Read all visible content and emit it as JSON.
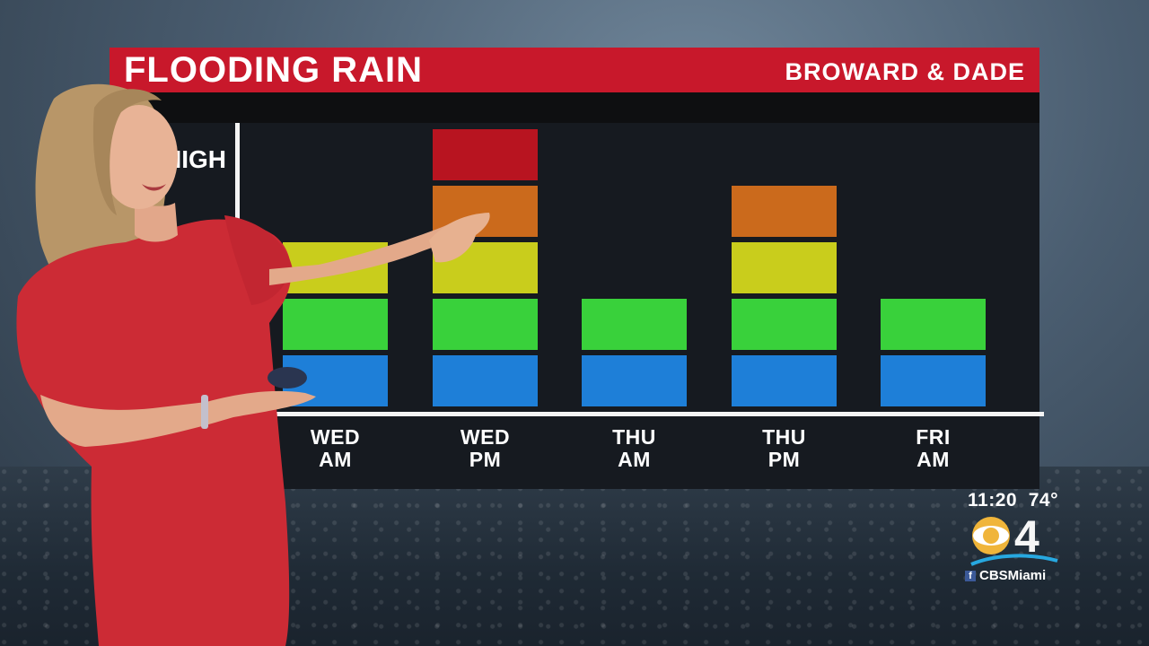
{
  "header": {
    "title": "FLOODING RAIN",
    "region": "BROWARD & DADE"
  },
  "y_label": "HIGH",
  "levels": [
    {
      "level": 1,
      "color": "#1e7fd8"
    },
    {
      "level": 2,
      "color": "#39d13b"
    },
    {
      "level": 3,
      "color": "#c9cd1c"
    },
    {
      "level": 4,
      "color": "#cb6a1c"
    },
    {
      "level": 5,
      "color": "#b81420"
    }
  ],
  "chart_data": {
    "type": "bar",
    "categories": [
      "WED AM",
      "WED PM",
      "THU AM",
      "THU PM",
      "FRI AM"
    ],
    "category_lines": [
      [
        "WED",
        "AM"
      ],
      [
        "WED",
        "PM"
      ],
      [
        "THU",
        "AM"
      ],
      [
        "THU",
        "PM"
      ],
      [
        "FRI",
        "AM"
      ]
    ],
    "values": [
      3,
      5,
      2,
      4,
      2
    ],
    "ylim": [
      0,
      5
    ],
    "ylabel": "",
    "xlabel": "",
    "grid": false
  },
  "bug": {
    "time": "11:20",
    "temp": "74°",
    "channel_number": "4",
    "social_handle": "CBSMiami",
    "social_icon": "facebook-icon"
  }
}
